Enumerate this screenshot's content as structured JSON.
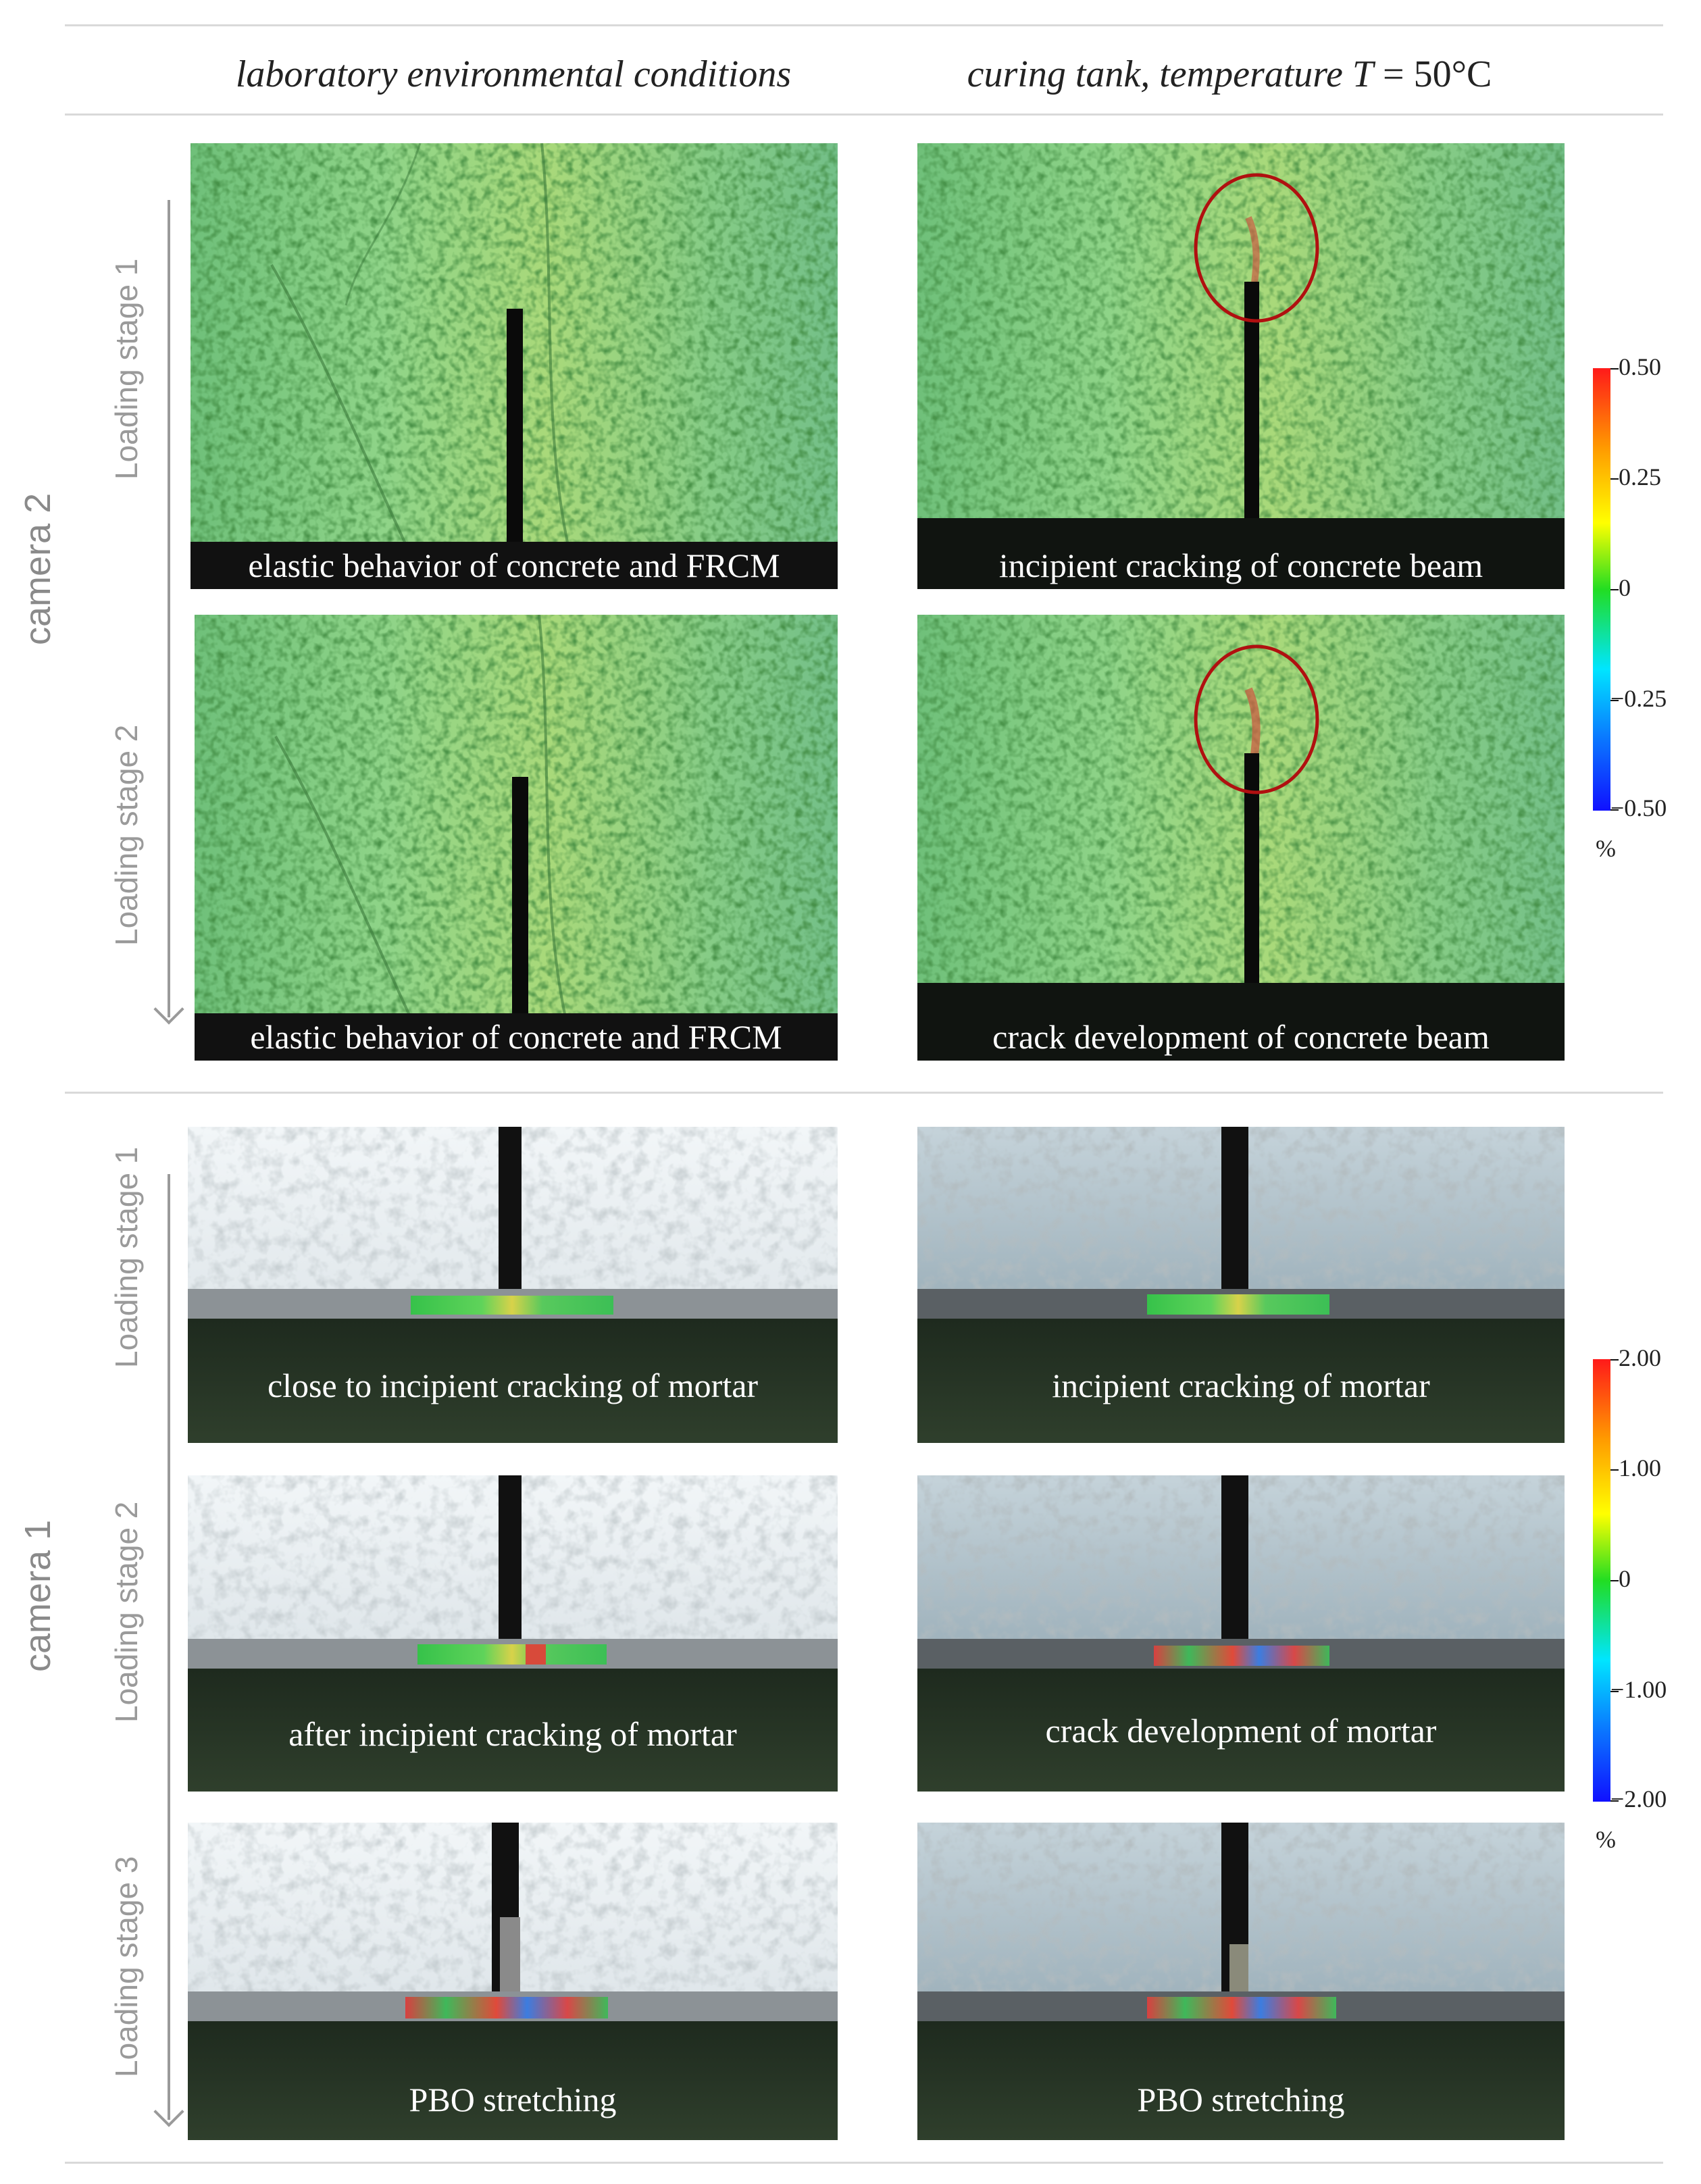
{
  "header": {
    "left_title": "laboratory environmental conditions",
    "right_title_prefix": "curing tank, temperature ",
    "right_title_var": "T",
    "right_title_eq": " = ",
    "right_title_value": "50°C"
  },
  "camera2": {
    "label": "camera 2",
    "stages": [
      "Loading stage 1",
      "Loading stage 2"
    ],
    "panels": [
      {
        "caption": "elastic behavior of concrete and FRCM"
      },
      {
        "caption": "incipient cracking of concrete beam"
      },
      {
        "caption": "elastic behavior of concrete and FRCM"
      },
      {
        "caption": "crack development of concrete beam"
      }
    ],
    "scale": {
      "ticks": [
        "0.50",
        "0.25",
        "0",
        "−0.25",
        "−0.50"
      ],
      "unit": "%"
    }
  },
  "camera1": {
    "label": "camera 1",
    "stages": [
      "Loading stage 1",
      "Loading stage 2",
      "Loading stage 3"
    ],
    "panels": [
      {
        "caption": "close to incipient cracking of mortar"
      },
      {
        "caption": "incipient cracking of mortar"
      },
      {
        "caption": "after incipient cracking of mortar"
      },
      {
        "caption": "crack development of mortar"
      },
      {
        "caption": "PBO stretching"
      },
      {
        "caption": "PBO stretching"
      }
    ],
    "scale": {
      "ticks": [
        "2.00",
        "1.00",
        "0",
        "−1.00",
        "−2.00"
      ],
      "unit": "%"
    }
  },
  "colors": {
    "scale_top": "#ff1a1a",
    "scale_mid_high": "#ffff00",
    "scale_mid": "#22dd22",
    "scale_mid_low": "#00e5ff",
    "scale_bottom": "#1010ff",
    "highlight_circle": "#b01010"
  }
}
